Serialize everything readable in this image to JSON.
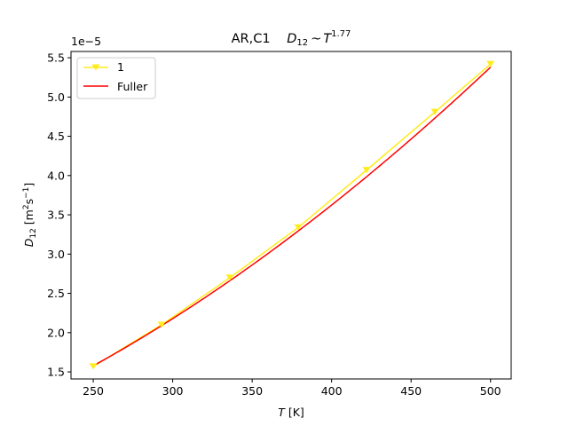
{
  "chart_data": {
    "type": "line",
    "title": {
      "prefix": "AR,C1",
      "d_base": "D",
      "d_sub": "12",
      "sim": "~",
      "t_base": "T",
      "t_exp": "1.77"
    },
    "xlabel": {
      "base": "T",
      "unit": " [K]"
    },
    "ylabel": {
      "base": "D",
      "sub": "12",
      "unit_open": " [m",
      "sup1": "2",
      "mid": "s",
      "sup2": "−1",
      "unit_close": "]"
    },
    "offset_text": "1e−5",
    "xlim": [
      236,
      513
    ],
    "ylim": [
      1.41,
      5.58
    ],
    "xticks": [
      250,
      300,
      350,
      400,
      450,
      500
    ],
    "xtick_labels": [
      "250",
      "300",
      "350",
      "400",
      "450",
      "500"
    ],
    "yticks": [
      1.5,
      2.0,
      2.5,
      3.0,
      3.5,
      4.0,
      4.5,
      5.0,
      5.5
    ],
    "ytick_labels": [
      "1.5",
      "2.0",
      "2.5",
      "3.0",
      "3.5",
      "4.0",
      "4.5",
      "5.0",
      "5.5"
    ],
    "legend_position": "top-left",
    "grid": false,
    "series": [
      {
        "name": "1",
        "color": "#ffec1c",
        "marker": "triangle-down",
        "x": [
          250,
          293,
          336,
          379,
          422,
          465,
          500
        ],
        "y": [
          1.57,
          2.1,
          2.7,
          3.34,
          4.07,
          4.81,
          5.42
        ]
      },
      {
        "name": "Fuller",
        "color": "#ff0000",
        "marker": "none",
        "curve": {
          "ref_x": 500,
          "ref_y": 5.38,
          "exponent": 1.77,
          "x_start": 250,
          "x_end": 500
        }
      }
    ]
  }
}
